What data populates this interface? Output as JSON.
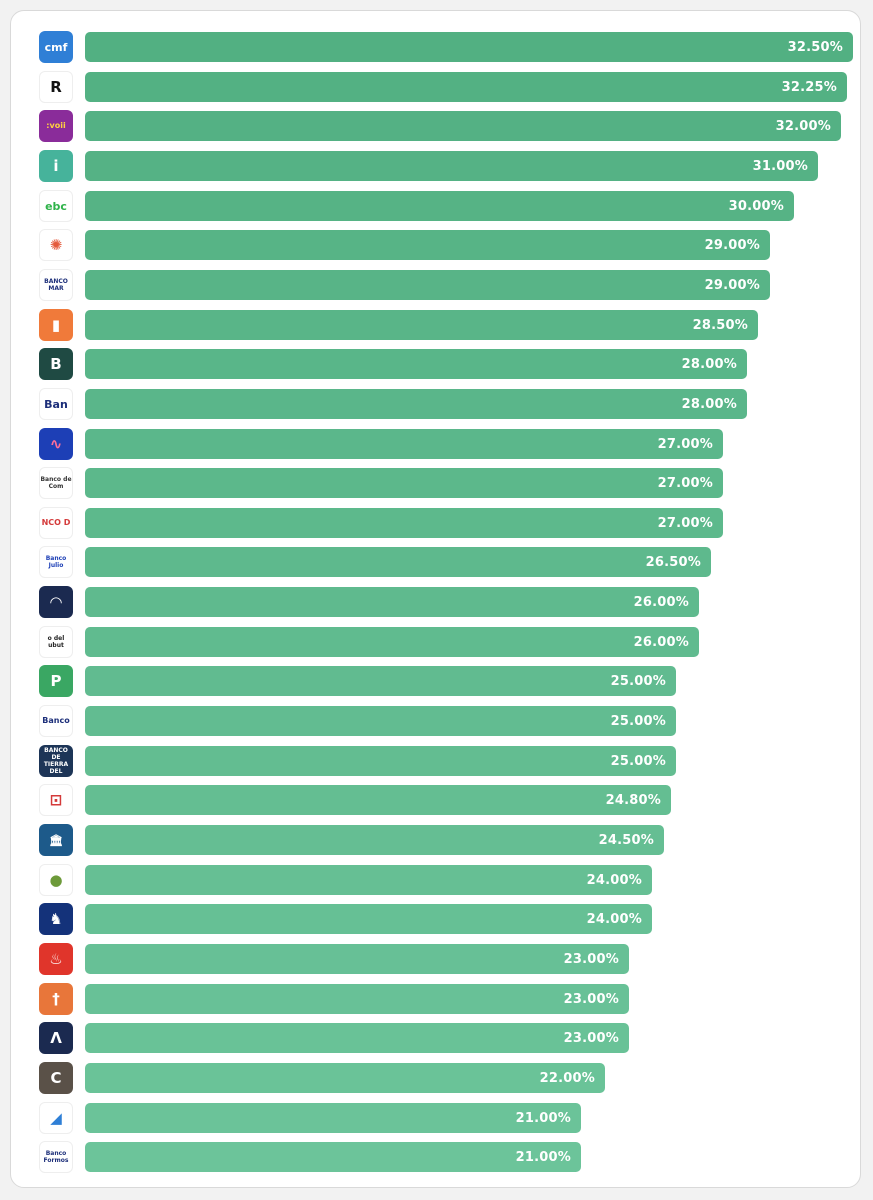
{
  "chart_data": {
    "type": "bar",
    "orientation": "horizontal",
    "title": "",
    "xlabel": "",
    "ylabel": "",
    "xlim": [
      0,
      32.5
    ],
    "grid": false,
    "legend": "none",
    "bar_color": "#5bb98a",
    "value_labels": [
      "32.50%",
      "32.25%",
      "32.00%",
      "31.00%",
      "30.00%",
      "29.00%",
      "29.00%",
      "28.50%",
      "28.00%",
      "28.00%",
      "27.00%",
      "27.00%",
      "27.00%",
      "26.50%",
      "26.00%",
      "26.00%",
      "25.00%",
      "25.00%",
      "25.00%",
      "24.80%",
      "24.50%",
      "24.00%",
      "24.00%",
      "23.00%",
      "23.00%",
      "23.00%",
      "22.00%",
      "21.00%",
      "21.00%"
    ],
    "values": [
      32.5,
      32.25,
      32.0,
      31.0,
      30.0,
      29.0,
      29.0,
      28.5,
      28.0,
      28.0,
      27.0,
      27.0,
      27.0,
      26.5,
      26.0,
      26.0,
      25.0,
      25.0,
      25.0,
      24.8,
      24.5,
      24.0,
      24.0,
      23.0,
      23.0,
      23.0,
      22.0,
      21.0,
      21.0
    ],
    "categories": [
      {
        "logo_text": "cmf",
        "icon": "cmf-logo-icon",
        "bg": "#2f7fd6",
        "fg": "#ffffff"
      },
      {
        "logo_text": "R",
        "icon": "r-circle-logo-icon",
        "bg": "#ffffff",
        "fg": "#111111"
      },
      {
        "logo_text": ":voii",
        "icon": "voii-logo-icon",
        "bg": "#8a2c9a",
        "fg": "#ffd23f"
      },
      {
        "logo_text": "i",
        "icon": "i-logo-icon",
        "bg": "#46b39b",
        "fg": "#ffffff"
      },
      {
        "logo_text": "ebc",
        "icon": "ebc-logo-icon",
        "bg": "#ffffff",
        "fg": "#2fb34a"
      },
      {
        "logo_text": "✺",
        "icon": "sunburst-logo-icon",
        "bg": "#ffffff",
        "fg": "#e45a3c"
      },
      {
        "logo_text": "BANCO MAR",
        "icon": "banco-mar-logo-icon",
        "bg": "#ffffff",
        "fg": "#1d2f7a"
      },
      {
        "logo_text": "▮",
        "icon": "bookmark-logo-icon",
        "bg": "#f07a3a",
        "fg": "#ffffff"
      },
      {
        "logo_text": "B",
        "icon": "b-logo-icon",
        "bg": "#1f4a43",
        "fg": "#ffffff"
      },
      {
        "logo_text": "Ban",
        "icon": "ban-logo-icon",
        "bg": "#ffffff",
        "fg": "#1d2f7a"
      },
      {
        "logo_text": "∿",
        "icon": "wave-logo-icon",
        "bg": "#1d3fb6",
        "fg": "#ff6f9a"
      },
      {
        "logo_text": "Banco de Com",
        "icon": "banco-comercio-logo-icon",
        "bg": "#ffffff",
        "fg": "#333333"
      },
      {
        "logo_text": "NCO D",
        "icon": "nco-d-logo-icon",
        "bg": "#ffffff",
        "fg": "#d43a3a"
      },
      {
        "logo_text": "Banco Julio",
        "icon": "banco-julio-logo-icon",
        "bg": "#ffffff",
        "fg": "#1d3fb6"
      },
      {
        "logo_text": "◠",
        "icon": "arc-logo-icon",
        "bg": "#1b2a50",
        "fg": "#ffffff"
      },
      {
        "logo_text": "o del ubut",
        "icon": "chubut-logo-icon",
        "bg": "#ffffff",
        "fg": "#222222"
      },
      {
        "logo_text": "P",
        "icon": "p-logo-icon",
        "bg": "#3aa763",
        "fg": "#ffffff"
      },
      {
        "logo_text": "Banco",
        "icon": "banco-small-logo-icon",
        "bg": "#ffffff",
        "fg": "#1d2f7a"
      },
      {
        "logo_text": "BANCO DE TIERRA DEL",
        "icon": "tierra-del-fuego-logo-icon",
        "bg": "#1d3557",
        "fg": "#ffffff"
      },
      {
        "logo_text": "⊡",
        "icon": "square-emblem-logo-icon",
        "bg": "#ffffff",
        "fg": "#d43a3a"
      },
      {
        "logo_text": "🏛",
        "icon": "bank-building-logo-icon",
        "bg": "#1d5a8a",
        "fg": "#ffffff"
      },
      {
        "logo_text": "●",
        "icon": "green-globe-logo-icon",
        "bg": "#ffffff",
        "fg": "#6d9a3a"
      },
      {
        "logo_text": "♞",
        "icon": "knight-logo-icon",
        "bg": "#14327a",
        "fg": "#ffffff"
      },
      {
        "logo_text": "♨",
        "icon": "flame-logo-icon",
        "bg": "#e0352b",
        "fg": "#ffffff"
      },
      {
        "logo_text": "†",
        "icon": "cross-logo-icon",
        "bg": "#e8763a",
        "fg": "#ffffff"
      },
      {
        "logo_text": "Λ",
        "icon": "lambda-logo-icon",
        "bg": "#1b2a50",
        "fg": "#ffffff"
      },
      {
        "logo_text": "C",
        "icon": "c-logo-icon",
        "bg": "#5a5148",
        "fg": "#ffffff"
      },
      {
        "logo_text": "◢",
        "icon": "diagonal-logo-icon",
        "bg": "#ffffff",
        "fg": "#2f7fd6"
      },
      {
        "logo_text": "Banco Formos",
        "icon": "banco-formosa-logo-icon",
        "bg": "#ffffff",
        "fg": "#1d2f7a"
      }
    ]
  }
}
